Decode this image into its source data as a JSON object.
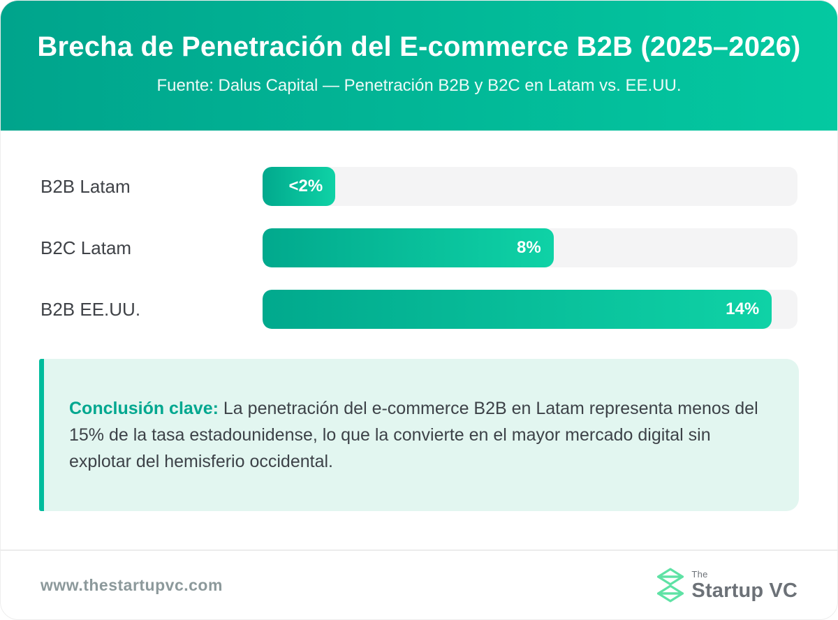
{
  "header": {
    "title": "Brecha de Penetración del E-commerce B2B (2025–2026)",
    "subtitle": "Fuente: Dalus Capital — Penetración B2B y B2C en Latam vs. EE.UU."
  },
  "chart_data": {
    "type": "bar",
    "orientation": "horizontal",
    "title": "Brecha de Penetración del E-commerce B2B (2025–2026)",
    "source": "Dalus Capital",
    "categories": [
      "B2B Latam",
      "B2C Latam",
      "B2B EE.UU."
    ],
    "values": [
      2,
      8,
      14
    ],
    "value_labels": [
      "<2%",
      "8%",
      "14%"
    ],
    "unit": "%",
    "xlim": [
      0,
      14.7
    ],
    "grid": false,
    "legend": false
  },
  "conclusion": {
    "heading": "Conclusión clave:",
    "text": "La penetración del e-commerce B2B en Latam representa menos del 15% de la tasa estadounidense, lo que la convierte en el mayor mercado digital sin explotar del hemisferio occidental."
  },
  "footer": {
    "website": "www.thestartupvc.com",
    "logo": {
      "prefix": "The",
      "name": "Startup",
      "suffix": "VC"
    }
  },
  "colors": {
    "header_gradient_start": "#00a48c",
    "header_gradient_end": "#04c9a1",
    "bar_gradient_start": "#01a98d",
    "bar_gradient_end": "#0fd2a6",
    "bar_track": "#f4f4f5",
    "callout_bg": "#e2f6f0",
    "callout_accent": "#00bc9d",
    "callout_heading": "#00a78f",
    "footer_text": "#8c999b",
    "logo_green": "#5fe2a5"
  }
}
